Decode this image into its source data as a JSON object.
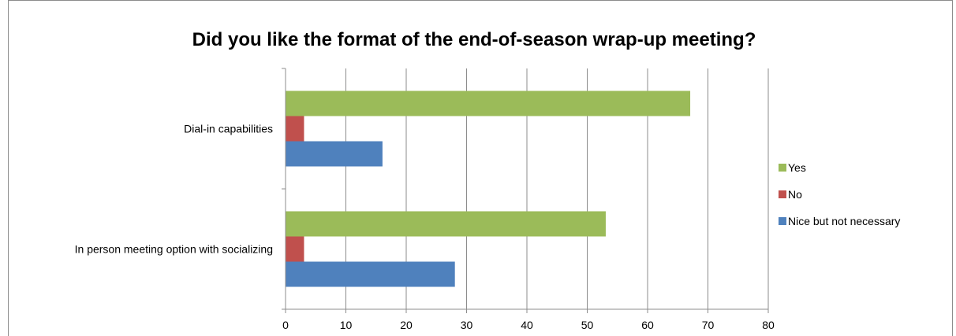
{
  "chart_data": {
    "type": "bar",
    "orientation": "horizontal",
    "title": "Did you like the format of the end-of-season wrap-up meeting?",
    "categories": [
      "Dial-in capabilities",
      "In person meeting option with socializing"
    ],
    "series": [
      {
        "name": "Yes",
        "color": "#9bbb59",
        "values": [
          67,
          53
        ]
      },
      {
        "name": "No",
        "color": "#c0504d",
        "values": [
          3,
          3
        ]
      },
      {
        "name": "Nice but not necessary",
        "color": "#4f81bd",
        "values": [
          16,
          28
        ]
      }
    ],
    "xlim": [
      0,
      80
    ],
    "xticks": [
      "0",
      "10",
      "20",
      "30",
      "40",
      "50",
      "60",
      "70",
      "80"
    ],
    "grid": true,
    "legend_position": "right"
  }
}
